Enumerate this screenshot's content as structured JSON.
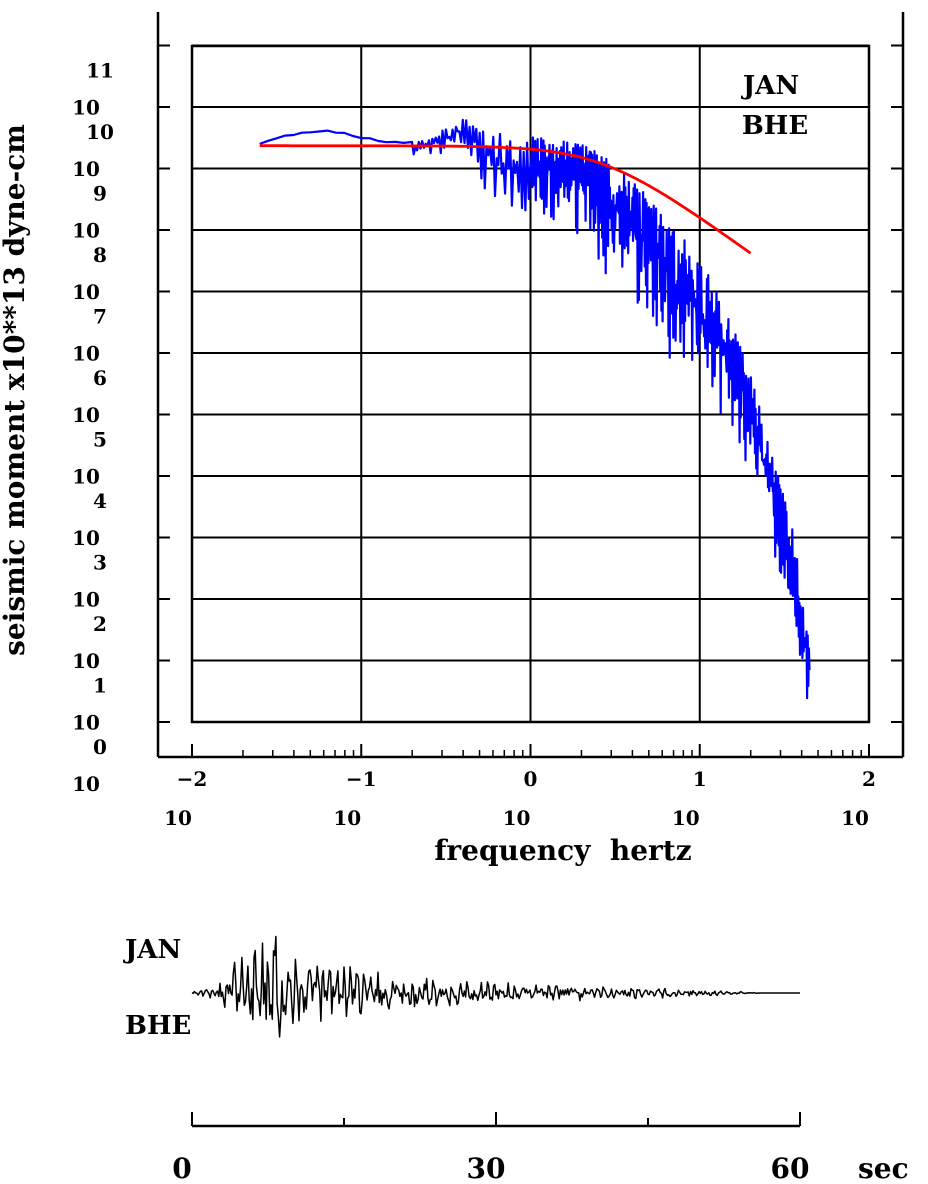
{
  "colors": {
    "background": "#ffffff",
    "axes": "#000000",
    "spectrum": "#0000ff",
    "fit": "#ff0000",
    "trace": "#000000"
  },
  "chart_data": [
    {
      "type": "line",
      "title": "",
      "xlabel": "frequency  hertz",
      "ylabel": "seismic moment x10**13 dyne-cm",
      "xscale": "log",
      "yscale": "log",
      "xlim_log10": [
        -2,
        2
      ],
      "ylim_log10": [
        0,
        11
      ],
      "x_ticks": [
        {
          "base": "10",
          "exp": "−2"
        },
        {
          "base": "10",
          "exp": "−1"
        },
        {
          "base": "10",
          "exp": "0"
        },
        {
          "base": "10",
          "exp": "1"
        },
        {
          "base": "10",
          "exp": "2"
        }
      ],
      "y_ticks": [
        {
          "base": "10",
          "exp": "0"
        },
        {
          "base": "10",
          "exp": "1"
        },
        {
          "base": "10",
          "exp": "2"
        },
        {
          "base": "10",
          "exp": "3"
        },
        {
          "base": "10",
          "exp": "4"
        },
        {
          "base": "10",
          "exp": "5"
        },
        {
          "base": "10",
          "exp": "6"
        },
        {
          "base": "10",
          "exp": "7"
        },
        {
          "base": "10",
          "exp": "8"
        },
        {
          "base": "10",
          "exp": "9"
        },
        {
          "base": "10",
          "exp": "10"
        },
        {
          "base": "10",
          "exp": "11"
        }
      ],
      "grid": true,
      "annotation": {
        "station": "JAN",
        "component": "BHE",
        "placement": "top-right"
      },
      "series": [
        {
          "name": "observed spectrum",
          "color": "#0000ff",
          "envelope_log10": {
            "x": [
              -1.6,
              -1.45,
              -1.2,
              -1.05,
              -0.85,
              -0.6,
              -0.4,
              -0.2,
              0.0,
              0.2,
              0.35,
              0.5,
              0.65,
              0.8,
              0.95,
              1.1,
              1.25,
              1.35,
              1.45,
              1.55,
              1.65
            ],
            "upper": [
              9.4,
              9.55,
              9.64,
              9.55,
              9.44,
              9.46,
              9.85,
              9.58,
              9.52,
              9.45,
              9.35,
              9.1,
              8.7,
              8.2,
              7.7,
              7.05,
              6.1,
              5.15,
              4.15,
              3.1,
              1.3
            ],
            "lower": [
              9.37,
              9.4,
              9.38,
              9.35,
              9.25,
              9.2,
              9.3,
              8.2,
              8.2,
              8.0,
              7.6,
              7.0,
              6.5,
              6.0,
              5.4,
              5.0,
              4.4,
              3.6,
              2.6,
              1.6,
              0.05
            ]
          }
        },
        {
          "name": "source model fit",
          "color": "#ff0000",
          "omega0_log10": 9.37,
          "corner_freq_log10": 0.43,
          "falloff": 2,
          "x_range_log10": [
            -1.6,
            1.3
          ]
        }
      ]
    },
    {
      "type": "line",
      "title": "",
      "xlabel": "sec",
      "xlim": [
        0,
        60
      ],
      "x_ticks": [
        "0",
        "30",
        "60"
      ],
      "annotation": {
        "station": "JAN",
        "component": "BHE",
        "placement": "left"
      },
      "series": [
        {
          "name": "seismogram trace",
          "color": "#000000",
          "duration_sec": 60,
          "signal_end_sec": 56.5,
          "envelope": {
            "t": [
              0,
              2,
              3,
              4,
              6,
              7,
              8,
              9,
              10,
              12,
              14,
              16,
              20,
              25,
              30,
              35,
              40,
              45,
              50,
              54,
              56.5
            ],
            "amplitude": [
              0.02,
              0.08,
              0.25,
              0.55,
              0.6,
              0.85,
              1.0,
              0.8,
              0.6,
              0.55,
              0.5,
              0.38,
              0.28,
              0.22,
              0.16,
              0.13,
              0.11,
              0.09,
              0.05,
              0.02,
              0.0
            ]
          }
        }
      ]
    }
  ]
}
